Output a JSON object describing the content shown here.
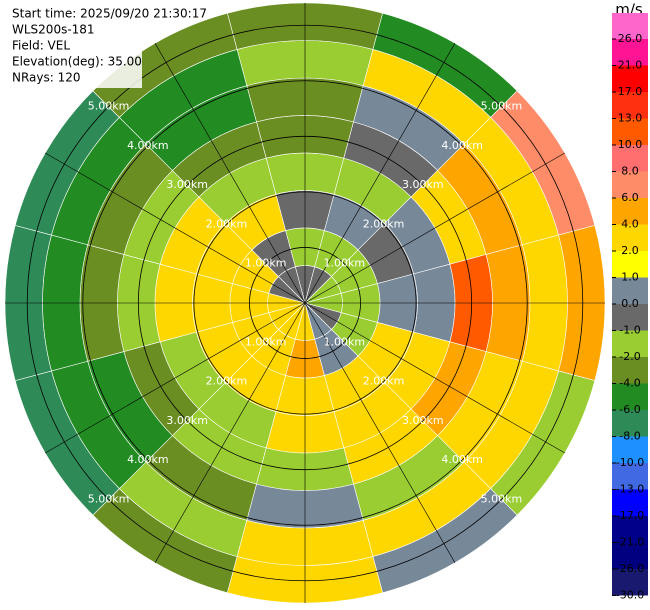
{
  "chart_data": {
    "type": "ppi",
    "info": [
      "Start time: 2025/09/20 21:30:17",
      "WLS200s-181",
      "Field: VEL",
      "Elevation(deg): 35.00",
      "NRays: 120"
    ],
    "azimuths": [
      0,
      30,
      60,
      90,
      120,
      150,
      180,
      210,
      240,
      270,
      300,
      330
    ],
    "rlim": [
      0,
      5.4
    ],
    "rticks": [
      {
        "value": 1,
        "label": "1.00km"
      },
      {
        "value": 2,
        "label": "2.00km"
      },
      {
        "value": 3,
        "label": "3.00km"
      },
      {
        "value": 4,
        "label": "4.00km"
      },
      {
        "value": 5,
        "label": "5.00km"
      }
    ],
    "values": [
      [
        -0.5,
        -1.5,
        -0.5,
        -1.5,
        -3,
        -3,
        -1.5,
        -3
      ],
      [
        -0.5,
        -1.5,
        0.5,
        -1.5,
        -0.5,
        0.5,
        3,
        -5
      ],
      [
        -1.5,
        -1.5,
        -0.5,
        0.5,
        3,
        5,
        2.5,
        7
      ],
      [
        -1.5,
        -1.5,
        0.5,
        0.5,
        12,
        5,
        3,
        5
      ],
      [
        -0.5,
        -1.5,
        3,
        3,
        5,
        3,
        2.5,
        -1.5
      ],
      [
        0.5,
        0.5,
        3,
        3,
        3,
        -1.5,
        3,
        0.5
      ],
      [
        3,
        5,
        3,
        3,
        -1.5,
        0.5,
        3,
        3
      ],
      [
        3,
        3,
        3,
        -1.5,
        -1.5,
        -3,
        -1.5,
        -3
      ],
      [
        3,
        3,
        3,
        -1.5,
        -3,
        -5,
        -5,
        -7
      ],
      [
        3,
        3,
        3,
        3,
        -1.5,
        -3,
        -5,
        -7
      ],
      [
        -0.5,
        3,
        3,
        3,
        -1.5,
        -3,
        -5,
        -7
      ],
      [
        -0.5,
        -0.5,
        3,
        -1.5,
        -3,
        -5,
        -5,
        -3
      ]
    ],
    "colorbar": {
      "unit": "m/s",
      "ticks": [
        {
          "value": 26,
          "label": "26.0"
        },
        {
          "value": 21,
          "label": "21.0"
        },
        {
          "value": 17,
          "label": "17.0"
        },
        {
          "value": 13,
          "label": "13.0"
        },
        {
          "value": 10,
          "label": "10.0"
        },
        {
          "value": 8,
          "label": "8.0"
        },
        {
          "value": 6,
          "label": "6.0"
        },
        {
          "value": 4,
          "label": "4.0"
        },
        {
          "value": 2,
          "label": "2.0"
        },
        {
          "value": 1,
          "label": "1.0"
        },
        {
          "value": 0,
          "label": "0.0"
        },
        {
          "value": -1,
          "label": "-1.0"
        },
        {
          "value": -2,
          "label": "-2.0"
        },
        {
          "value": -4,
          "label": "-4.0"
        },
        {
          "value": -6,
          "label": "-6.0"
        },
        {
          "value": -8,
          "label": "-8.0"
        },
        {
          "value": -10,
          "label": "-10.0"
        },
        {
          "value": -13,
          "label": "-13.0"
        },
        {
          "value": -17,
          "label": "-17.0"
        },
        {
          "value": -21,
          "label": "-21.0"
        },
        {
          "value": -26,
          "label": "-26.0"
        },
        {
          "value": -30,
          "label": "-30.0"
        }
      ],
      "colors": [
        "#ff66cc",
        "#ff1493",
        "#ff0000",
        "#ff3010",
        "#ff5a00",
        "#ff6f6f",
        "#ff8c69",
        "#ffa500",
        "#ffd700",
        "#ffff00",
        "#778899",
        "#696969",
        "#9acd32",
        "#6b8e23",
        "#228b22",
        "#2e8b57",
        "#1e90ff",
        "#4169e1",
        "#0000ff",
        "#00008b",
        "#000080",
        "#191970"
      ]
    }
  }
}
